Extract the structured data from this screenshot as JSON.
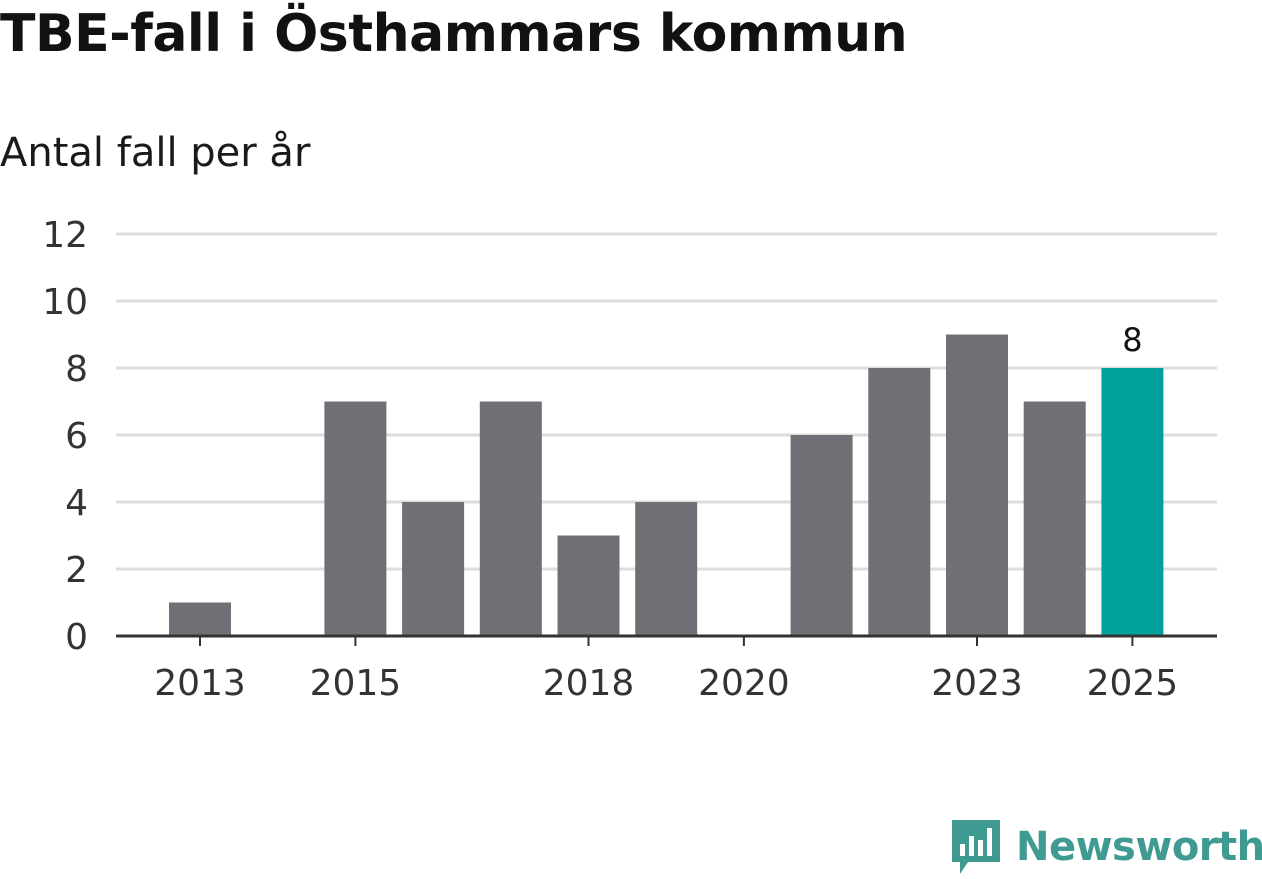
{
  "title": "TBE-fall i Östhammars kommun",
  "subtitle": "Antal fall per år",
  "brand": {
    "name": "Newsworthy",
    "color": "#3f9a92"
  },
  "colors": {
    "bar": "#706f75",
    "highlight": "#00a19a",
    "grid": "#dddddd",
    "axis": "#333333"
  },
  "chart_data": {
    "type": "bar",
    "title": "TBE-fall i Östhammars kommun",
    "subtitle": "Antal fall per år",
    "categories": [
      "2013",
      "2014",
      "2015",
      "2016",
      "2017",
      "2018",
      "2019",
      "2020",
      "2021",
      "2022",
      "2023",
      "2024",
      "2025"
    ],
    "values": [
      1,
      0,
      7,
      4,
      7,
      3,
      4,
      0,
      6,
      8,
      9,
      7,
      8
    ],
    "x_tick_labels": [
      "2013",
      "2015",
      "2018",
      "2020",
      "2023",
      "2025"
    ],
    "y_ticks": [
      0,
      2,
      4,
      6,
      8,
      10,
      12
    ],
    "ylim": [
      0,
      12
    ],
    "highlight_category": "2025",
    "data_labels": [
      {
        "category": "2025",
        "text": "8"
      }
    ],
    "grid": true,
    "legend": "none"
  }
}
